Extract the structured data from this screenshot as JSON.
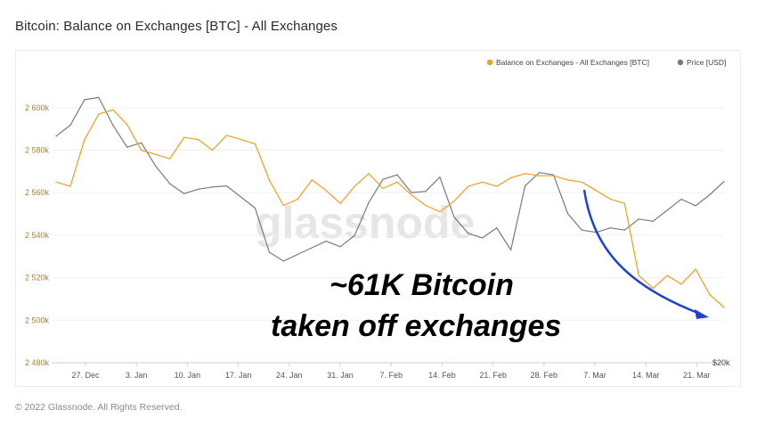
{
  "page": {
    "title": "Bitcoin: Balance on Exchanges [BTC] - All Exchanges",
    "footer": "© 2022 Glassnode. All Rights Reserved.",
    "watermark": "glassnode"
  },
  "annotation": {
    "line1": "~61K Bitcoin",
    "line2": "taken off exchanges",
    "arrow_color": "#1f3fd6"
  },
  "chart_data": {
    "type": "line",
    "title": "Bitcoin: Balance on Exchanges [BTC] - All Exchanges",
    "x": [
      "22 Dec",
      "24 Dec",
      "26 Dec",
      "29 Dec",
      "31 Dec",
      "2 Jan",
      "3 Jan",
      "6 Jan",
      "8 Jan",
      "10 Jan",
      "12 Jan",
      "14 Jan",
      "17 Jan",
      "19 Jan",
      "21 Jan",
      "22 Jan",
      "24 Jan",
      "25 Jan",
      "27 Jan",
      "29 Jan",
      "31 Jan",
      "3 Feb",
      "5 Feb",
      "7 Feb",
      "9 Feb",
      "11 Feb",
      "14 Feb",
      "16 Feb",
      "18 Feb",
      "21 Feb",
      "24 Feb",
      "26 Feb",
      "28 Feb",
      "2 Mar",
      "3 Mar",
      "5 Mar",
      "7 Mar",
      "8 Mar",
      "10 Mar",
      "12 Mar",
      "13 Mar",
      "14 Mar",
      "16 Mar",
      "17 Mar",
      "19 Mar",
      "21 Mar",
      "22 Mar",
      "23 Mar"
    ],
    "xticks": [
      "27. Dec",
      "3. Jan",
      "10. Jan",
      "17. Jan",
      "24. Jan",
      "31. Jan",
      "7. Feb",
      "14. Feb",
      "21. Feb",
      "28. Feb",
      "7. Mar",
      "14. Mar",
      "21. Mar"
    ],
    "yticks": [
      "2 480k",
      "2 500k",
      "2 520k",
      "2 540k",
      "2 560k",
      "2 580k",
      "2 600k"
    ],
    "ylim": [
      2480000,
      2610000
    ],
    "right_axis_label": "$20k",
    "legend_position": "top-right",
    "series": [
      {
        "name": "Balance on Exchanges - All Exchanges [BTC]",
        "color": "#f29d1f",
        "axis": "left",
        "values": [
          2565000,
          2563000,
          2585000,
          2597000,
          2599000,
          2592000,
          2580000,
          2578000,
          2576000,
          2586000,
          2585000,
          2580000,
          2587000,
          2585000,
          2583000,
          2566000,
          2554000,
          2557000,
          2566000,
          2561000,
          2555000,
          2563000,
          2569000,
          2562000,
          2565000,
          2559000,
          2554000,
          2551000,
          2556000,
          2563000,
          2565000,
          2563000,
          2567000,
          2569000,
          2568000,
          2568000,
          2566000,
          2565000,
          2561000,
          2557000,
          2555000,
          2521000,
          2515000,
          2521000,
          2517000,
          2524000,
          2512000,
          2506000
        ]
      },
      {
        "name": "Price [USD]",
        "color": "#7a7a7a",
        "axis": "right",
        "values": [
          47500,
          48500,
          50800,
          51000,
          48500,
          46500,
          46900,
          44800,
          43200,
          42300,
          42700,
          42900,
          43000,
          42000,
          41000,
          37000,
          36200,
          36800,
          37400,
          38000,
          37500,
          38500,
          41500,
          43600,
          44000,
          42400,
          42500,
          43800,
          40200,
          38700,
          38300,
          39200,
          37200,
          43000,
          44200,
          44000,
          40500,
          39000,
          38800,
          39200,
          39000,
          40000,
          39800,
          40800,
          41800,
          41200,
          42200,
          43400
        ]
      }
    ],
    "price_domain": [
      27000,
      52000
    ]
  }
}
